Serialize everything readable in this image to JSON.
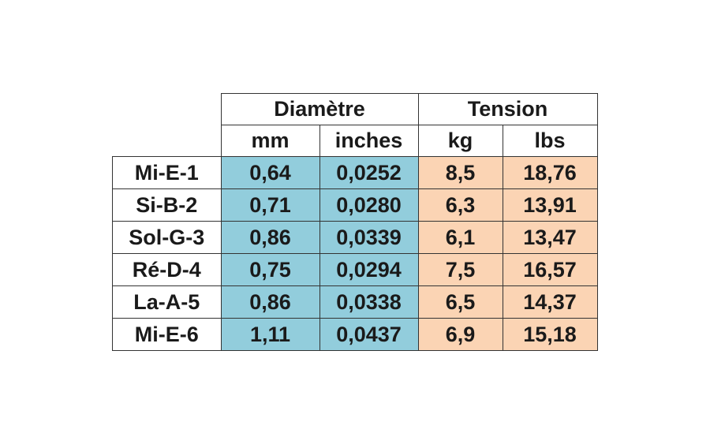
{
  "table": {
    "groups": [
      "Diamètre",
      "Tension"
    ],
    "units": [
      "mm",
      "inches",
      "kg",
      "lbs"
    ],
    "rows": [
      [
        "Mi-E-1",
        "0,64",
        "0,0252",
        "8,5",
        "18,76"
      ],
      [
        "Si-B-2",
        "0,71",
        "0,0280",
        "6,3",
        "13,91"
      ],
      [
        "Sol-G-3",
        "0,86",
        "0,0339",
        "6,1",
        "13,47"
      ],
      [
        "Ré-D-4",
        "0,75",
        "0,0294",
        "7,5",
        "16,57"
      ],
      [
        "La-A-5",
        "0,86",
        "0,0338",
        "6,5",
        "14,37"
      ],
      [
        "Mi-E-6",
        "1,11",
        "0,0437",
        "6,9",
        "15,18"
      ]
    ]
  }
}
